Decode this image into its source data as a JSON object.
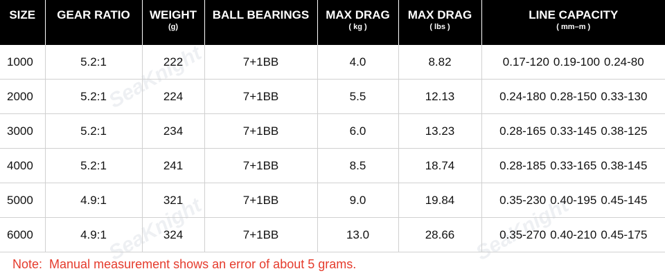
{
  "headers": [
    {
      "main": "SIZE",
      "unit": ""
    },
    {
      "main": "GEAR RATIO",
      "unit": ""
    },
    {
      "main": "WEIGHT",
      "unit": "(g)"
    },
    {
      "main": "BALL BEARINGS",
      "unit": ""
    },
    {
      "main": "MAX DRAG",
      "unit": "( kg )"
    },
    {
      "main": "MAX DRAG",
      "unit": "( lbs )"
    },
    {
      "main": "LINE CAPACITY",
      "unit": "( mm–m )"
    }
  ],
  "rows": [
    {
      "size": "1000",
      "gear_ratio": "5.2:1",
      "weight": "222",
      "bearings": "7+1BB",
      "drag_kg": "4.0",
      "drag_lbs": "8.82",
      "capacity": [
        "0.17-120",
        "0.19-100",
        "0.24-80"
      ]
    },
    {
      "size": "2000",
      "gear_ratio": "5.2:1",
      "weight": "224",
      "bearings": "7+1BB",
      "drag_kg": "5.5",
      "drag_lbs": "12.13",
      "capacity": [
        "0.24-180",
        "0.28-150",
        "0.33-130"
      ]
    },
    {
      "size": "3000",
      "gear_ratio": "5.2:1",
      "weight": "234",
      "bearings": "7+1BB",
      "drag_kg": "6.0",
      "drag_lbs": "13.23",
      "capacity": [
        "0.28-165",
        "0.33-145",
        "0.38-125"
      ]
    },
    {
      "size": "4000",
      "gear_ratio": "5.2:1",
      "weight": "241",
      "bearings": "7+1BB",
      "drag_kg": "8.5",
      "drag_lbs": "18.74",
      "capacity": [
        "0.28-185",
        "0.33-165",
        "0.38-145"
      ]
    },
    {
      "size": "5000",
      "gear_ratio": "4.9:1",
      "weight": "321",
      "bearings": "7+1BB",
      "drag_kg": "9.0",
      "drag_lbs": "19.84",
      "capacity": [
        "0.35-230",
        "0.40-195",
        "0.45-145"
      ]
    },
    {
      "size": "6000",
      "gear_ratio": "4.9:1",
      "weight": "324",
      "bearings": "7+1BB",
      "drag_kg": "13.0",
      "drag_lbs": "28.66",
      "capacity": [
        "0.35-270",
        "0.40-210",
        "0.45-175"
      ]
    }
  ],
  "note": {
    "label": "Note:",
    "text": "Manual measurement shows an error of about 5 grams."
  },
  "watermark": "SeaKnight",
  "colors": {
    "header_bg": "#000000",
    "header_text": "#ffffff",
    "note_text": "#e53b2c",
    "grid_line": "#d0d0d0"
  }
}
